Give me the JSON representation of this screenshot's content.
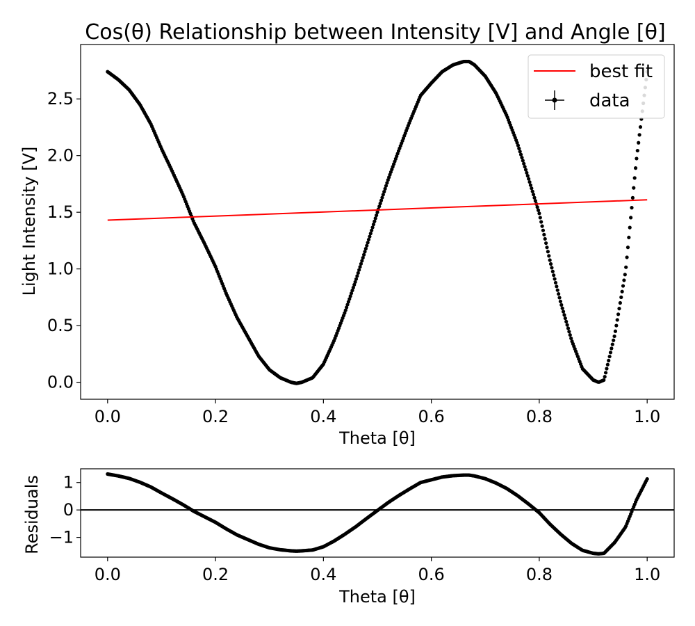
{
  "chart_data": [
    {
      "type": "scatter",
      "title": "Cos(θ) Relationship between Intensity [V] and Angle [θ]",
      "xlabel": "Theta [θ]",
      "ylabel": "Light Intensity [V]",
      "xlim": [
        -0.05,
        1.05
      ],
      "ylim": [
        -0.15,
        2.98
      ],
      "xticks": [
        "0.0",
        "0.2",
        "0.4",
        "0.6",
        "0.8",
        "1.0"
      ],
      "yticks": [
        "0.0",
        "0.5",
        "1.0",
        "1.5",
        "2.0",
        "2.5"
      ],
      "legend": {
        "placement": "top-right",
        "entries": [
          "best fit",
          "data"
        ]
      },
      "series": [
        {
          "name": "data",
          "kind": "points",
          "color": "#000000",
          "x": [
            0.0,
            0.02,
            0.04,
            0.06,
            0.08,
            0.1,
            0.12,
            0.14,
            0.16,
            0.18,
            0.2,
            0.22,
            0.24,
            0.26,
            0.28,
            0.3,
            0.32,
            0.34,
            0.35,
            0.36,
            0.38,
            0.4,
            0.42,
            0.44,
            0.46,
            0.48,
            0.5,
            0.52,
            0.54,
            0.56,
            0.58,
            0.6,
            0.62,
            0.64,
            0.66,
            0.67,
            0.68,
            0.7,
            0.72,
            0.74,
            0.76,
            0.78,
            0.8,
            0.82,
            0.84,
            0.86,
            0.88,
            0.9,
            0.91,
            0.92,
            0.94,
            0.96,
            0.98,
            1.0
          ],
          "y": [
            2.74,
            2.67,
            2.58,
            2.45,
            2.28,
            2.06,
            1.86,
            1.65,
            1.41,
            1.22,
            1.02,
            0.78,
            0.57,
            0.4,
            0.23,
            0.11,
            0.04,
            0.0,
            -0.01,
            0.0,
            0.04,
            0.16,
            0.37,
            0.62,
            0.9,
            1.2,
            1.5,
            1.79,
            2.05,
            2.3,
            2.53,
            2.64,
            2.74,
            2.8,
            2.83,
            2.83,
            2.8,
            2.7,
            2.55,
            2.35,
            2.1,
            1.8,
            1.49,
            1.07,
            0.7,
            0.37,
            0.12,
            0.02,
            0.0,
            0.02,
            0.42,
            0.98,
            1.96,
            2.74
          ]
        },
        {
          "name": "best fit",
          "kind": "line",
          "color": "#ff0000",
          "x": [
            0.0,
            1.0
          ],
          "y": [
            1.43,
            1.61
          ]
        }
      ]
    },
    {
      "type": "scatter",
      "title": "",
      "xlabel": "Theta [θ]",
      "ylabel": "Residuals",
      "xlim": [
        -0.05,
        1.05
      ],
      "ylim": [
        -1.72,
        1.5
      ],
      "xticks": [
        "0.0",
        "0.2",
        "0.4",
        "0.6",
        "0.8",
        "1.0"
      ],
      "yticks": [
        "−1",
        "0",
        "1"
      ],
      "zero_line": true,
      "series": [
        {
          "kind": "points",
          "color": "#000000",
          "x": [
            0.0,
            0.02,
            0.04,
            0.06,
            0.08,
            0.1,
            0.12,
            0.14,
            0.16,
            0.18,
            0.2,
            0.22,
            0.24,
            0.26,
            0.28,
            0.3,
            0.32,
            0.34,
            0.35,
            0.36,
            0.38,
            0.4,
            0.42,
            0.44,
            0.46,
            0.48,
            0.5,
            0.52,
            0.54,
            0.56,
            0.58,
            0.6,
            0.62,
            0.64,
            0.66,
            0.67,
            0.68,
            0.7,
            0.72,
            0.74,
            0.76,
            0.78,
            0.8,
            0.82,
            0.84,
            0.86,
            0.88,
            0.9,
            0.91,
            0.92,
            0.94,
            0.96,
            0.98,
            1.0
          ],
          "y": [
            1.31,
            1.24,
            1.15,
            1.01,
            0.84,
            0.62,
            0.41,
            0.19,
            -0.05,
            -0.25,
            -0.45,
            -0.69,
            -0.91,
            -1.08,
            -1.25,
            -1.38,
            -1.45,
            -1.49,
            -1.5,
            -1.49,
            -1.46,
            -1.34,
            -1.13,
            -0.88,
            -0.61,
            -0.31,
            -0.02,
            0.27,
            0.53,
            0.77,
            1.0,
            1.1,
            1.2,
            1.25,
            1.27,
            1.27,
            1.24,
            1.14,
            0.98,
            0.78,
            0.52,
            0.22,
            -0.1,
            -0.52,
            -0.89,
            -1.22,
            -1.47,
            -1.58,
            -1.6,
            -1.58,
            -1.18,
            -0.62,
            0.36,
            1.13
          ]
        }
      ]
    }
  ]
}
